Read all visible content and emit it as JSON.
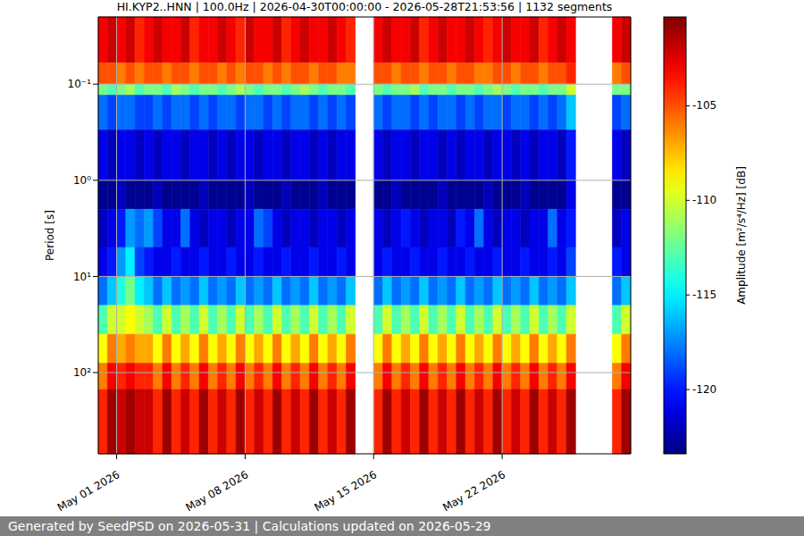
{
  "chart_data": {
    "type": "heatmap",
    "title": "HI.KYP2..HNN | 100.0Hz | 2026-04-30T00:00:00 - 2026-05-28T21:53:56 | 1132 segments",
    "y_label": "Period [s]",
    "annotations": [
      "Generated by SeedPSD on 2026-05-31 | Calculations updated on 2026-05-29"
    ],
    "log": "y",
    "grid": true,
    "xlim": [
      "2026-04-30T00:00",
      "2026-05-29T00:00"
    ],
    "xticks": [
      {
        "value": "2026-05-01T00:00",
        "label": "May 01 2026"
      },
      {
        "value": "2026-05-08T00:00",
        "label": "May 08 2026"
      },
      {
        "value": "2026-05-15T00:00",
        "label": "May 15 2026"
      },
      {
        "value": "2026-05-22T00:00",
        "label": "May 22 2026"
      }
    ],
    "ylim": [
      700,
      0.02
    ],
    "yticks": [
      {
        "value": 0.1,
        "label": "10⁻¹"
      },
      {
        "value": 1,
        "label": "10⁰"
      },
      {
        "value": 10,
        "label": "10¹"
      },
      {
        "value": 100,
        "label": "10²"
      }
    ],
    "x_bins": [
      "2026-04-30T00:00",
      "2026-04-30T12:00",
      "2026-05-01T00:00",
      "2026-05-01T12:00",
      "2026-05-02T00:00",
      "2026-05-02T12:00",
      "2026-05-03T00:00",
      "2026-05-03T12:00",
      "2026-05-04T00:00",
      "2026-05-04T12:00",
      "2026-05-05T00:00",
      "2026-05-05T12:00",
      "2026-05-06T00:00",
      "2026-05-06T12:00",
      "2026-05-07T00:00",
      "2026-05-07T12:00",
      "2026-05-08T00:00",
      "2026-05-08T12:00",
      "2026-05-09T00:00",
      "2026-05-09T12:00",
      "2026-05-10T00:00",
      "2026-05-10T12:00",
      "2026-05-11T00:00",
      "2026-05-11T12:00",
      "2026-05-12T00:00",
      "2026-05-12T12:00",
      "2026-05-13T00:00",
      "2026-05-13T12:00",
      "2026-05-14T00:00",
      "2026-05-14T12:00",
      "2026-05-15T00:00",
      "2026-05-15T12:00",
      "2026-05-16T00:00",
      "2026-05-16T12:00",
      "2026-05-17T00:00",
      "2026-05-17T12:00",
      "2026-05-18T00:00",
      "2026-05-18T12:00",
      "2026-05-19T00:00",
      "2026-05-19T12:00",
      "2026-05-20T00:00",
      "2026-05-20T12:00",
      "2026-05-21T00:00",
      "2026-05-21T12:00",
      "2026-05-22T00:00",
      "2026-05-22T12:00",
      "2026-05-23T00:00",
      "2026-05-23T12:00",
      "2026-05-24T00:00",
      "2026-05-24T12:00",
      "2026-05-25T00:00",
      "2026-05-25T12:00",
      "2026-05-26T00:00",
      "2026-05-26T12:00",
      "2026-05-27T00:00",
      "2026-05-27T12:00",
      "2026-05-28T00:00",
      "2026-05-28T12:00",
      "2026-05-29T00:00"
    ],
    "y_bins": [
      0.02,
      0.06,
      0.1,
      0.13,
      0.3,
      1,
      2,
      5,
      10,
      20,
      40,
      80,
      150,
      700
    ],
    "values": [
      [
        -103,
        -102,
        -103,
        -102,
        -104,
        -103,
        -102,
        -103,
        -103,
        -102,
        -104,
        -103,
        -103,
        -102,
        -103,
        -104,
        -102,
        -103,
        -103,
        -102,
        -104,
        -103,
        -102,
        -103,
        -103,
        -102,
        -103,
        -104,
        null,
        null,
        -103,
        -102,
        -103,
        -103,
        -102,
        -104,
        -103,
        -102,
        -103,
        -103,
        -102,
        -103,
        -104,
        -103,
        -102,
        -103,
        -103,
        -102,
        -104,
        -103,
        -102,
        -103,
        null,
        null,
        null,
        null,
        -103,
        -102
      ],
      [
        -105,
        -105,
        -106,
        -105,
        -106,
        -105,
        -105,
        -106,
        -105,
        -105,
        -106,
        -105,
        -105,
        -106,
        -105,
        -106,
        -105,
        -105,
        -106,
        -105,
        -106,
        -105,
        -105,
        -106,
        -105,
        -105,
        -106,
        -106,
        null,
        null,
        -105,
        -105,
        -106,
        -105,
        -105,
        -106,
        -105,
        -105,
        -106,
        -105,
        -105,
        -106,
        -106,
        -105,
        -105,
        -106,
        -105,
        -105,
        -106,
        -105,
        -105,
        -104,
        null,
        null,
        null,
        null,
        -106,
        -105
      ],
      [
        -112,
        -113,
        -112,
        -111,
        -113,
        -112,
        -112,
        -113,
        -111,
        -112,
        -113,
        -112,
        -112,
        -113,
        -112,
        -111,
        -112,
        -113,
        -112,
        -112,
        -113,
        -112,
        -111,
        -112,
        -113,
        -112,
        -112,
        -113,
        null,
        null,
        -112,
        -113,
        -112,
        -112,
        -111,
        -113,
        -112,
        -112,
        -113,
        -112,
        -112,
        -113,
        -112,
        -111,
        -112,
        -113,
        -112,
        -112,
        -113,
        -112,
        -112,
        -110,
        null,
        null,
        null,
        null,
        -112,
        -112
      ],
      [
        -118,
        -119,
        -118,
        -118,
        -119,
        -119,
        -118,
        -119,
        -118,
        -118,
        -119,
        -118,
        -119,
        -118,
        -118,
        -119,
        -118,
        -118,
        -119,
        -118,
        -119,
        -118,
        -118,
        -119,
        -118,
        -119,
        -118,
        -119,
        null,
        null,
        -118,
        -119,
        -118,
        -118,
        -119,
        -118,
        -119,
        -118,
        -118,
        -119,
        -118,
        -119,
        -118,
        -118,
        -119,
        -118,
        -118,
        -119,
        -118,
        -119,
        -118,
        -116,
        null,
        null,
        null,
        null,
        -119,
        -118
      ],
      [
        -121,
        -122,
        -121,
        -121,
        -122,
        -121,
        -122,
        -121,
        -121,
        -122,
        -121,
        -121,
        -122,
        -121,
        -122,
        -121,
        -121,
        -122,
        -121,
        -121,
        -122,
        -121,
        -121,
        -122,
        -121,
        -122,
        -121,
        -121,
        null,
        null,
        -121,
        -122,
        -121,
        -121,
        -122,
        -121,
        -121,
        -122,
        -121,
        -122,
        -121,
        -121,
        -122,
        -121,
        -121,
        -122,
        -121,
        -122,
        -121,
        -121,
        -122,
        -120,
        null,
        null,
        null,
        null,
        -121,
        -122
      ],
      [
        -123,
        -123,
        -122,
        -123,
        -123,
        -123,
        -122,
        -123,
        -123,
        -123,
        -123,
        -122,
        -123,
        -123,
        -123,
        -123,
        -122,
        -123,
        -123,
        -123,
        -122,
        -123,
        -123,
        -123,
        -122,
        -123,
        -123,
        -123,
        null,
        null,
        -123,
        -123,
        -122,
        -123,
        -123,
        -123,
        -123,
        -122,
        -123,
        -123,
        -123,
        -123,
        -122,
        -123,
        -123,
        -123,
        -122,
        -123,
        -123,
        -123,
        -123,
        -121,
        null,
        null,
        null,
        null,
        -123,
        -123
      ],
      [
        -122,
        -121,
        -120,
        -117,
        -118,
        -117,
        -119,
        -121,
        -121,
        -118,
        -121,
        -122,
        -121,
        -121,
        -122,
        -121,
        -121,
        -118,
        -119,
        -121,
        -122,
        -121,
        -121,
        -122,
        -121,
        -121,
        -122,
        -121,
        null,
        null,
        -121,
        -122,
        -121,
        -120,
        -121,
        -122,
        -121,
        -121,
        -122,
        -120,
        -121,
        -118,
        -121,
        -122,
        -121,
        -121,
        -122,
        -121,
        -121,
        -118,
        -121,
        -120,
        null,
        null,
        null,
        null,
        -122,
        -121
      ],
      [
        -121,
        -120,
        -117,
        -115,
        -119,
        -120,
        -121,
        -121,
        -120,
        -121,
        -121,
        -120,
        -121,
        -121,
        -120,
        -121,
        -121,
        -120,
        -121,
        -121,
        -120,
        -121,
        -121,
        -120,
        -121,
        -121,
        -120,
        -121,
        null,
        null,
        -121,
        -120,
        -121,
        -121,
        -120,
        -121,
        -121,
        -120,
        -121,
        -121,
        -120,
        -121,
        -121,
        -120,
        -121,
        -121,
        -120,
        -121,
        -121,
        -120,
        -121,
        -119,
        null,
        null,
        null,
        null,
        -120,
        -121
      ],
      [
        -118,
        -116,
        -114,
        -112,
        -115,
        -116,
        -118,
        -116,
        -118,
        -117,
        -118,
        -116,
        -118,
        -117,
        -118,
        -116,
        -118,
        -117,
        -118,
        -116,
        -118,
        -117,
        -118,
        -116,
        -118,
        -117,
        -118,
        -116,
        null,
        null,
        -118,
        -116,
        -118,
        -117,
        -118,
        -116,
        -118,
        -117,
        -118,
        -116,
        -118,
        -117,
        -118,
        -116,
        -118,
        -117,
        -118,
        -116,
        -118,
        -117,
        -118,
        -116,
        null,
        null,
        null,
        null,
        -118,
        -116
      ],
      [
        -113,
        -110,
        -110,
        -109,
        -110,
        -111,
        -113,
        -110,
        -113,
        -111,
        -113,
        -110,
        -113,
        -111,
        -113,
        -110,
        -113,
        -111,
        -113,
        -110,
        -113,
        -111,
        -113,
        -110,
        -113,
        -111,
        -113,
        -110,
        null,
        null,
        -113,
        -110,
        -113,
        -111,
        -113,
        -110,
        -113,
        -111,
        -113,
        -110,
        -113,
        -111,
        -113,
        -110,
        -113,
        -111,
        -113,
        -110,
        -113,
        -111,
        -113,
        -110,
        null,
        null,
        null,
        null,
        -113,
        -110
      ],
      [
        -109,
        -106,
        -107,
        -106,
        -107,
        -107,
        -109,
        -106,
        -109,
        -107,
        -109,
        -106,
        -109,
        -107,
        -109,
        -106,
        -109,
        -107,
        -109,
        -106,
        -109,
        -107,
        -109,
        -106,
        -109,
        -107,
        -109,
        -106,
        null,
        null,
        -109,
        -106,
        -109,
        -107,
        -109,
        -106,
        -109,
        -107,
        -109,
        -106,
        -109,
        -107,
        -109,
        -106,
        -109,
        -107,
        -109,
        -106,
        -109,
        -107,
        -109,
        -106,
        null,
        null,
        null,
        null,
        -109,
        -106
      ],
      [
        -106,
        -103,
        -104,
        -103,
        -104,
        -104,
        -106,
        -103,
        -106,
        -104,
        -106,
        -103,
        -106,
        -104,
        -106,
        -103,
        -106,
        -104,
        -106,
        -103,
        -106,
        -104,
        -106,
        -103,
        -106,
        -104,
        -106,
        -103,
        null,
        null,
        -106,
        -103,
        -106,
        -104,
        -106,
        -103,
        -106,
        -104,
        -106,
        -103,
        -106,
        -104,
        -106,
        -103,
        -106,
        -104,
        -106,
        -103,
        -106,
        -104,
        -106,
        -103,
        null,
        null,
        null,
        null,
        -106,
        -103
      ],
      [
        -104,
        -101,
        -102,
        -101,
        -102,
        -102,
        -104,
        -101,
        -104,
        -102,
        -104,
        -101,
        -104,
        -102,
        -104,
        -101,
        -104,
        -102,
        -104,
        -101,
        -104,
        -102,
        -104,
        -101,
        -104,
        -102,
        -104,
        -101,
        null,
        null,
        -104,
        -101,
        -104,
        -102,
        -104,
        -101,
        -104,
        -102,
        -104,
        -101,
        -104,
        -102,
        -104,
        -101,
        -104,
        -102,
        -104,
        -101,
        -104,
        -102,
        -104,
        -101,
        null,
        null,
        null,
        null,
        -104,
        -101
      ]
    ],
    "colorbar": {
      "label": "Amplitude [m²/s⁴/Hz] [dB]",
      "range": [
        -123.4,
        -100.3
      ],
      "ticks": [
        -105,
        -110,
        -115,
        -120
      ]
    }
  }
}
